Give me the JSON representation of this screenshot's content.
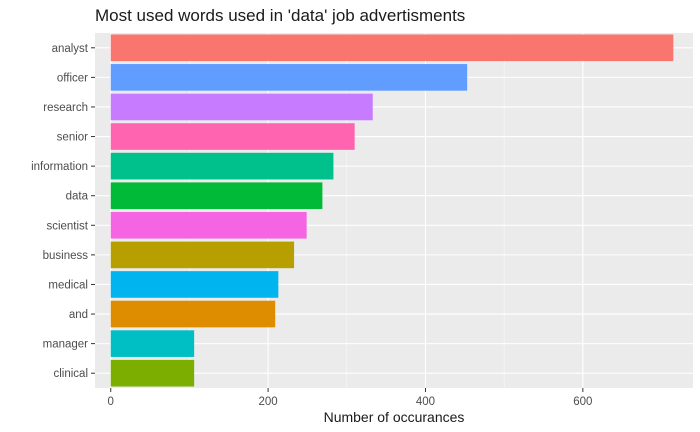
{
  "chart_data": {
    "type": "bar",
    "orientation": "horizontal",
    "title": "Most used words used in 'data' job advertisments",
    "xlabel": "Number of occurances",
    "ylabel": "",
    "xlim": [
      -20,
      740
    ],
    "xticks": [
      0,
      200,
      400,
      600
    ],
    "grid": true,
    "legend": "none",
    "categories": [
      "analyst",
      "officer",
      "research",
      "senior",
      "information",
      "data",
      "scientist",
      "business",
      "medical",
      "and",
      "manager",
      "clinical"
    ],
    "values": [
      715,
      453,
      333,
      310,
      283,
      269,
      249,
      233,
      213,
      209,
      106,
      106
    ],
    "colors": [
      "#F8766D",
      "#619CFF",
      "#C77CFF",
      "#FF64B0",
      "#00C08B",
      "#00BA38",
      "#F564E3",
      "#B79F00",
      "#00B4EF",
      "#DE8C00",
      "#00BFC4",
      "#7CAE00"
    ],
    "panel_background": "#EBEBEB",
    "gridline_color": "#FFFFFF"
  }
}
